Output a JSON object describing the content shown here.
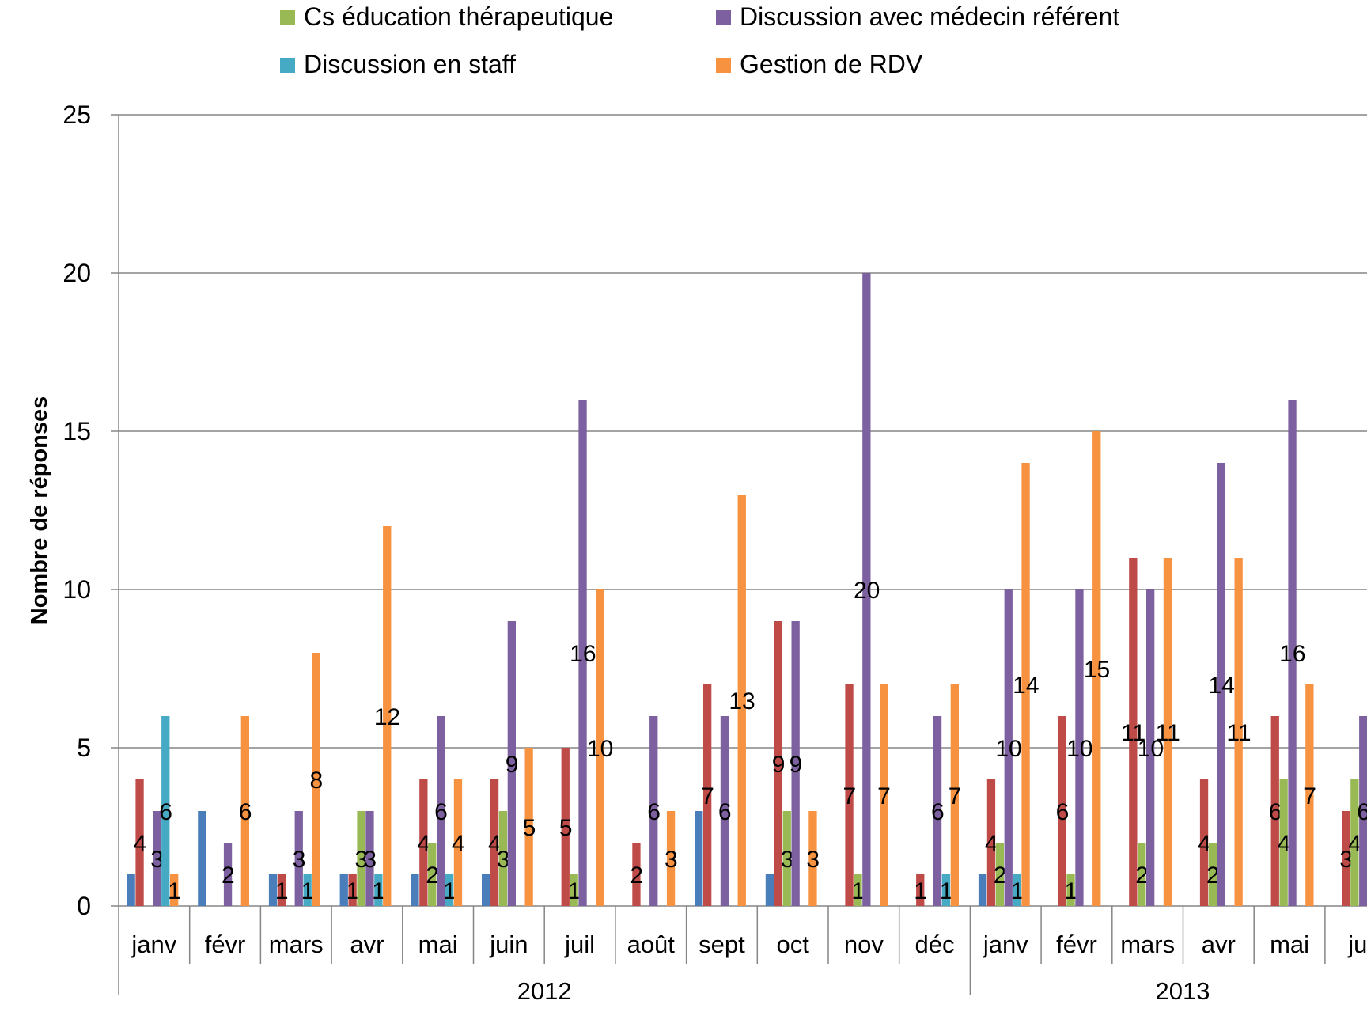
{
  "chart_data": {
    "type": "bar",
    "ylabel": "Nombre de réponses",
    "ylim": [
      0,
      25
    ],
    "yticks": [
      0,
      5,
      10,
      15,
      20,
      25
    ],
    "grid": true,
    "legend_position": "top",
    "groups": [
      {
        "label": "2012",
        "categories": [
          "janv",
          "févr",
          "mars",
          "avr",
          "mai",
          "juin",
          "juil",
          "août",
          "sept",
          "oct",
          "nov",
          "déc"
        ]
      },
      {
        "label": "2013",
        "categories": [
          "janv",
          "févr",
          "mars",
          "avr",
          "mai",
          "jui"
        ]
      }
    ],
    "series": [
      {
        "name": "",
        "color": "#4a7ebb",
        "values": [
          1,
          3,
          1,
          1,
          1,
          1,
          0,
          0,
          3,
          1,
          0,
          0,
          1,
          0,
          0,
          0,
          0,
          0
        ],
        "labels": [
          false,
          false,
          false,
          false,
          false,
          false,
          false,
          false,
          false,
          false,
          false,
          false,
          false,
          false,
          false,
          false,
          false,
          false
        ]
      },
      {
        "name": "",
        "color": "#be4b48",
        "values": [
          4,
          0,
          1,
          1,
          4,
          4,
          5,
          2,
          7,
          9,
          7,
          1,
          4,
          6,
          11,
          4,
          6,
          3
        ],
        "labels": [
          true,
          false,
          true,
          true,
          true,
          true,
          true,
          true,
          true,
          true,
          true,
          true,
          true,
          true,
          true,
          true,
          true,
          true
        ]
      },
      {
        "name": "Cs éducation thérapeutique",
        "color": "#98b954",
        "values": [
          0,
          0,
          0,
          3,
          2,
          3,
          1,
          0,
          0,
          3,
          1,
          0,
          2,
          1,
          2,
          2,
          4,
          4
        ],
        "labels": [
          false,
          false,
          false,
          true,
          true,
          true,
          true,
          false,
          false,
          true,
          true,
          false,
          true,
          true,
          true,
          true,
          true,
          true
        ]
      },
      {
        "name": "Discussion avec médecin référent",
        "color": "#7d60a0",
        "values": [
          3,
          2,
          3,
          3,
          6,
          9,
          16,
          6,
          6,
          9,
          20,
          6,
          10,
          10,
          10,
          14,
          16,
          6
        ],
        "labels": [
          true,
          true,
          true,
          true,
          true,
          true,
          true,
          true,
          true,
          true,
          true,
          true,
          true,
          true,
          true,
          true,
          true,
          true
        ]
      },
      {
        "name": "Discussion en staff",
        "color": "#46aac5",
        "values": [
          6,
          0,
          1,
          1,
          1,
          0,
          0,
          0,
          0,
          0,
          0,
          1,
          1,
          0,
          0,
          0,
          0,
          0
        ],
        "labels": [
          true,
          false,
          true,
          true,
          true,
          false,
          false,
          false,
          false,
          false,
          false,
          true,
          true,
          false,
          false,
          false,
          false,
          false
        ]
      },
      {
        "name": "Gestion de RDV",
        "color": "#f69240",
        "values": [
          1,
          6,
          8,
          12,
          4,
          5,
          10,
          3,
          13,
          3,
          7,
          7,
          14,
          15,
          11,
          11,
          7,
          0
        ],
        "labels": [
          true,
          true,
          true,
          true,
          true,
          true,
          true,
          true,
          true,
          true,
          true,
          true,
          true,
          true,
          true,
          true,
          true,
          false
        ]
      }
    ]
  }
}
